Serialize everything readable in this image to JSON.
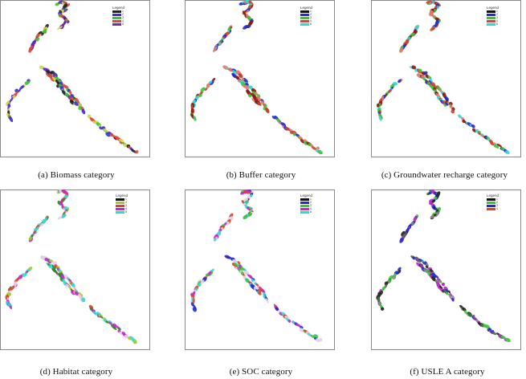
{
  "panels": [
    {
      "caption": "(a)  Biomass  category",
      "legend": {
        "title": "Legend",
        "items": [
          {
            "label": "1",
            "color": "#222222"
          },
          {
            "label": "2",
            "color": "#3a2fd6"
          },
          {
            "label": "3",
            "color": "#3cc23a"
          },
          {
            "label": "4",
            "color": "#d84a3c"
          },
          {
            "label": "5",
            "color": "#7a2a9e"
          }
        ]
      },
      "map_palette": [
        "#3a2fd6",
        "#3cc23a",
        "#7a2a9e",
        "#d0d84a",
        "#222222",
        "#d84a3c"
      ]
    },
    {
      "caption": "(b)  Buffer  category",
      "legend": {
        "title": "Legend",
        "items": [
          {
            "label": "1",
            "color": "#111111"
          },
          {
            "label": "2",
            "color": "#1f2bd0"
          },
          {
            "label": "3",
            "color": "#3cc23a"
          },
          {
            "label": "4",
            "color": "#d8442c"
          },
          {
            "label": "5",
            "color": "#36d7d0"
          }
        ]
      },
      "map_palette": [
        "#c8442c",
        "#1f2bd0",
        "#3cc23a",
        "#36d7d0",
        "#e27a6a",
        "#8a1a10"
      ]
    },
    {
      "caption": "(c)  Groundwater  recharge  category",
      "legend": {
        "title": "Legend",
        "items": [
          {
            "label": "1",
            "color": "#111111"
          },
          {
            "label": "2",
            "color": "#1f2bd0"
          },
          {
            "label": "3",
            "color": "#3cc23a"
          },
          {
            "label": "4",
            "color": "#d8442c"
          },
          {
            "label": "5",
            "color": "#36d7d0"
          }
        ]
      },
      "map_palette": [
        "#c8442c",
        "#1f2bd0",
        "#3cc23a",
        "#e27a6a",
        "#8a1a10",
        "#36d7d0"
      ]
    },
    {
      "caption": "(d)  Habitat  category",
      "legend": {
        "title": "Legend",
        "items": [
          {
            "label": "1",
            "color": "#111111"
          },
          {
            "label": "2",
            "color": "#9acd32"
          },
          {
            "label": "3",
            "color": "#d8442c"
          },
          {
            "label": "4",
            "color": "#c02ac8"
          },
          {
            "label": "5",
            "color": "#36d7d0"
          }
        ]
      },
      "map_palette": [
        "#36d7d0",
        "#c02ac8",
        "#9acd32",
        "#d8442c",
        "#f0c8e8",
        "#2a8a2a"
      ]
    },
    {
      "caption": "(e)  SOC  category",
      "legend": {
        "title": "Legend",
        "items": [
          {
            "label": "1",
            "color": "#111111"
          },
          {
            "label": "2",
            "color": "#1f2bd0"
          },
          {
            "label": "3",
            "color": "#3cc23a"
          },
          {
            "label": "4",
            "color": "#c02ac8"
          },
          {
            "label": "5",
            "color": "#36d7d0"
          }
        ]
      },
      "map_palette": [
        "#36d7d0",
        "#c02ac8",
        "#d8442c",
        "#3cc23a",
        "#1f2bd0",
        "#e8d0e8"
      ]
    },
    {
      "caption": "(f)  USLE  A  category",
      "legend": {
        "title": "Legend",
        "items": [
          {
            "label": "1",
            "color": "#111111"
          },
          {
            "label": "2",
            "color": "#3cc23a"
          },
          {
            "label": "3",
            "color": "#1f2bd0"
          },
          {
            "label": "4",
            "color": "#d8442c"
          }
        ]
      },
      "map_palette": [
        "#222222",
        "#8a8a8a",
        "#3cc23a",
        "#4a6a4a",
        "#c02ac8",
        "#1f2bd0"
      ]
    }
  ]
}
